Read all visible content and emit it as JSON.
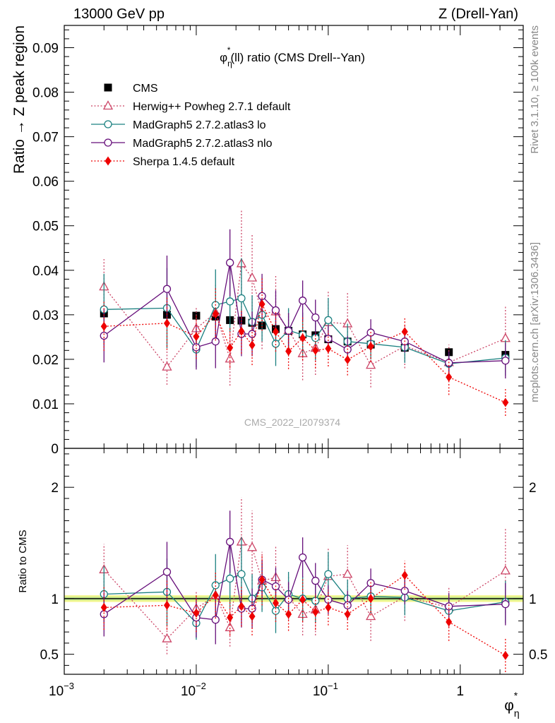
{
  "header": {
    "left": "13000 GeV pp",
    "right": "Z (Drell-Yan)"
  },
  "side_labels": {
    "rivet": "Rivet 3.1.10, ≥ 100k events",
    "mcplots": "mcplots.cern.ch [arXiv:1306.3436]"
  },
  "watermark": "CMS_2022_I2079374",
  "chart_data": {
    "type": "scatter",
    "title_parts": {
      "phi": "φ",
      "star": "*",
      "eta": "η",
      "rest": "(ll) ratio (CMS Drell--Yan)"
    },
    "ylabel": "Ratio → Z peak region",
    "ratio_ylabel": "Ratio to CMS",
    "xlabel_parts": {
      "phi": "φ",
      "star": "*",
      "eta": "η"
    },
    "xscale": "log",
    "xlim": [
      0.001,
      3.0
    ],
    "ylim": [
      0,
      0.095
    ],
    "ratio_ylim": [
      0.32,
      2.35
    ],
    "main_yticks": [
      {
        "v": 0,
        "label": "0"
      },
      {
        "v": 0.01,
        "label": "0.01"
      },
      {
        "v": 0.02,
        "label": "0.02"
      },
      {
        "v": 0.03,
        "label": "0.03"
      },
      {
        "v": 0.04,
        "label": "0.04"
      },
      {
        "v": 0.05,
        "label": "0.05"
      },
      {
        "v": 0.06,
        "label": "0.06"
      },
      {
        "v": 0.07,
        "label": "0.07"
      },
      {
        "v": 0.08,
        "label": "0.08"
      },
      {
        "v": 0.09,
        "label": "0.09"
      }
    ],
    "ratio_yticks": [
      {
        "v": 0.5,
        "label": "0.5"
      },
      {
        "v": 1,
        "label": "1"
      },
      {
        "v": 2,
        "label": "2"
      }
    ],
    "xticks": [
      {
        "v": 0.001,
        "base": "10",
        "exp": "−3"
      },
      {
        "v": 0.01,
        "base": "10",
        "exp": "−2"
      },
      {
        "v": 0.1,
        "base": "10",
        "exp": "−1"
      },
      {
        "v": 1,
        "base": "1",
        "exp": ""
      }
    ],
    "legend_position": "top-left",
    "x": [
      0.002,
      0.006,
      0.01,
      0.014,
      0.018,
      0.022,
      0.0265,
      0.0315,
      0.04,
      0.05,
      0.064,
      0.08,
      0.1,
      0.14,
      0.21,
      0.38,
      0.82,
      2.2
    ],
    "series": [
      {
        "name": "CMS",
        "color": "#000000",
        "marker": "square",
        "values": [
          0.0303,
          0.03,
          0.0298,
          0.0296,
          0.0288,
          0.0287,
          0.0282,
          0.0276,
          0.0268,
          0.0264,
          0.0256,
          0.0254,
          0.0245,
          0.024,
          0.0233,
          0.0226,
          0.0216,
          0.021
        ],
        "err": [
          0.001,
          0.001,
          0.001,
          0.001,
          0.001,
          0.001,
          0.001,
          0.001,
          0.001,
          0.001,
          0.001,
          0.001,
          0.001,
          0.001,
          0.001,
          0.001,
          0.001,
          0.001
        ],
        "ratio": [
          1,
          1,
          1,
          1,
          1,
          1,
          1,
          1,
          1,
          1,
          1,
          1,
          1,
          1,
          1,
          1,
          1,
          1
        ]
      },
      {
        "name": "Herwig++ Powheg 2.7.1 default",
        "color": "#cc4466",
        "marker": "triangle",
        "dash": true,
        "values": [
          0.0363,
          0.0183,
          0.0269,
          0.0305,
          0.0201,
          0.0415,
          0.0383,
          0.0303,
          0.0307,
          0.0265,
          0.0213,
          0.0225,
          0.0283,
          0.028,
          0.0187,
          0.023,
          0.0193,
          0.0247
        ],
        "err": [
          0.0062,
          0.004,
          0.005,
          0.0062,
          0.006,
          0.012,
          0.01,
          0.008,
          0.008,
          0.005,
          0.006,
          0.006,
          0.007,
          0.007,
          0.005,
          0.005,
          0.004,
          0.0075
        ],
        "ratio": [
          1.26,
          0.64,
          0.91,
          1.03,
          0.74,
          1.51,
          1.46,
          1.16,
          1.19,
          1.01,
          0.86,
          0.9,
          1.2,
          1.22,
          0.84,
          1.02,
          0.92,
          1.25
        ],
        "ratio_err": [
          0.23,
          0.14,
          0.15,
          0.2,
          0.17,
          0.4,
          0.33,
          0.26,
          0.28,
          0.2,
          0.19,
          0.23,
          0.25,
          0.26,
          0.22,
          0.22,
          0.18,
          0.38
        ]
      },
      {
        "name": "MadGraph5 2.7.2.atlas3 lo",
        "color": "#1a8080",
        "marker": "circle",
        "values": [
          0.0312,
          0.0315,
          0.0222,
          0.0322,
          0.033,
          0.0337,
          0.0284,
          0.03,
          0.0235,
          0.0265,
          0.0255,
          0.0248,
          0.0288,
          0.024,
          0.0235,
          0.0227,
          0.019,
          0.0203
        ],
        "err": [
          0.008,
          0.009,
          0.004,
          0.008,
          0.007,
          0.009,
          0.006,
          0.006,
          0.005,
          0.005,
          0.005,
          0.005,
          0.005,
          0.004,
          0.0035,
          0.0035,
          0.0025,
          0.004
        ],
        "ratio": [
          1.04,
          1.06,
          0.78,
          1.12,
          1.18,
          1.22,
          1.0,
          1.1,
          0.89,
          1.04,
          1.0,
          0.98,
          1.22,
          1.0,
          1.02,
          1.01,
          0.89,
          0.97
        ],
        "ratio_err": [
          0.25,
          0.3,
          0.15,
          0.28,
          0.27,
          0.33,
          0.22,
          0.22,
          0.2,
          0.2,
          0.2,
          0.2,
          0.2,
          0.17,
          0.15,
          0.16,
          0.12,
          0.19
        ]
      },
      {
        "name": "MadGraph5 2.7.2.atlas3 nlo",
        "color": "#660e7a",
        "marker": "circle",
        "values": [
          0.0253,
          0.0358,
          0.0227,
          0.024,
          0.0417,
          0.0257,
          0.0257,
          0.0342,
          0.031,
          0.0264,
          0.0332,
          0.0294,
          0.0246,
          0.0222,
          0.026,
          0.024,
          0.0192,
          0.0197
        ],
        "err": [
          0.006,
          0.0075,
          0.005,
          0.006,
          0.0075,
          0.005,
          0.005,
          0.005,
          0.0045,
          0.004,
          0.0045,
          0.004,
          0.003,
          0.003,
          0.003,
          0.0025,
          0.0025,
          0.004
        ],
        "ratio": [
          0.86,
          1.24,
          0.83,
          0.81,
          1.51,
          0.91,
          0.91,
          1.17,
          1.11,
          0.99,
          1.37,
          1.16,
          0.99,
          0.94,
          1.14,
          1.07,
          0.93,
          0.95
        ],
        "ratio_err": [
          0.2,
          0.27,
          0.18,
          0.22,
          0.28,
          0.17,
          0.18,
          0.18,
          0.17,
          0.16,
          0.18,
          0.16,
          0.13,
          0.13,
          0.13,
          0.12,
          0.12,
          0.19
        ]
      },
      {
        "name": "Sherpa 1.4.5 default",
        "color": "#ee0000",
        "marker": "diamond",
        "dash": true,
        "values": [
          0.0274,
          0.0281,
          0.0251,
          0.0302,
          0.0226,
          0.0263,
          0.0232,
          0.0324,
          0.0262,
          0.0218,
          0.0248,
          0.022,
          0.0224,
          0.0199,
          0.0229,
          0.0262,
          0.016,
          0.0103
        ],
        "err": [
          0.0055,
          0.006,
          0.005,
          0.006,
          0.0045,
          0.005,
          0.0045,
          0.006,
          0.0045,
          0.004,
          0.005,
          0.004,
          0.004,
          0.0035,
          0.0035,
          0.003,
          0.004,
          0.003
        ],
        "ratio": [
          0.92,
          0.94,
          0.87,
          1.03,
          0.83,
          0.93,
          0.84,
          1.17,
          0.96,
          0.86,
          0.99,
          0.88,
          0.92,
          0.86,
          1.0,
          1.21,
          0.79,
          0.49
        ],
        "ratio_err": [
          0.2,
          0.22,
          0.17,
          0.21,
          0.16,
          0.18,
          0.17,
          0.23,
          0.17,
          0.15,
          0.2,
          0.16,
          0.16,
          0.14,
          0.15,
          0.13,
          0.17,
          0.15
        ]
      }
    ]
  }
}
